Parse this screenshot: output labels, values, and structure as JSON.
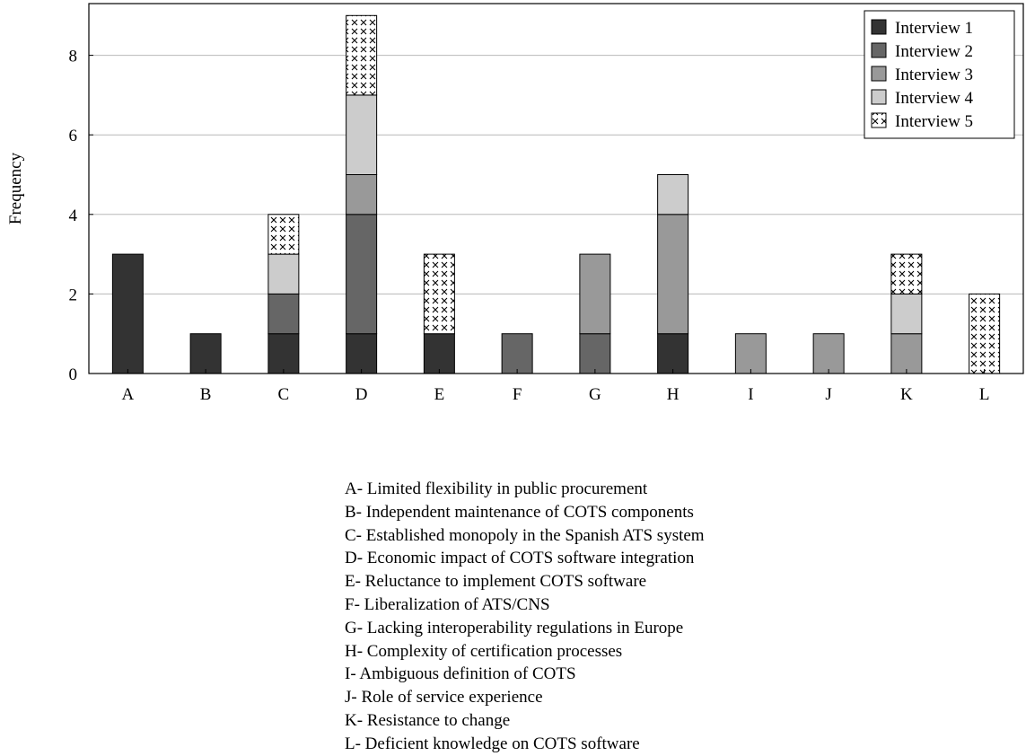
{
  "chart_data": {
    "type": "bar",
    "stacked": true,
    "categories": [
      "A",
      "B",
      "C",
      "D",
      "E",
      "F",
      "G",
      "H",
      "I",
      "J",
      "K",
      "L"
    ],
    "series": [
      {
        "name": "Interview 1",
        "values": [
          3,
          1,
          1,
          1,
          1,
          0,
          0,
          1,
          0,
          0,
          0,
          0
        ],
        "color": "#333333",
        "pattern": "solid"
      },
      {
        "name": "Interview 2",
        "values": [
          0,
          0,
          1,
          3,
          0,
          1,
          1,
          0,
          0,
          0,
          0,
          0
        ],
        "color": "#666666",
        "pattern": "solid"
      },
      {
        "name": "Interview 3",
        "values": [
          0,
          0,
          0,
          1,
          0,
          0,
          2,
          3,
          1,
          1,
          1,
          0
        ],
        "color": "#999999",
        "pattern": "solid"
      },
      {
        "name": "Interview 4",
        "values": [
          0,
          0,
          1,
          2,
          0,
          0,
          0,
          1,
          0,
          0,
          1,
          0
        ],
        "color": "#cccccc",
        "pattern": "solid"
      },
      {
        "name": "Interview 5",
        "values": [
          0,
          0,
          1,
          2,
          2,
          0,
          0,
          0,
          0,
          0,
          1,
          2
        ],
        "color": "#ffffff",
        "pattern": "crosshatch"
      }
    ],
    "ylabel": "Frequency",
    "xlabel": "",
    "ylim": [
      0,
      9.3
    ],
    "yticks": [
      0,
      2,
      4,
      6,
      8
    ],
    "grid": "horizontal",
    "legend_position": "top-right"
  },
  "category_key": [
    "A- Limited flexibility in public procurement",
    "B- Independent maintenance of COTS components",
    "C- Established monopoly in the Spanish ATS system",
    "D- Economic impact of COTS software integration",
    "E- Reluctance to implement COTS software",
    "F- Liberalization of ATS/CNS",
    "G- Lacking interoperability regulations in Europe",
    "H- Complexity of certification processes",
    "I- Ambiguous definition of COTS",
    "J- Role of service experience",
    "K- Resistance to change",
    "L- Deficient knowledge on COTS software"
  ]
}
